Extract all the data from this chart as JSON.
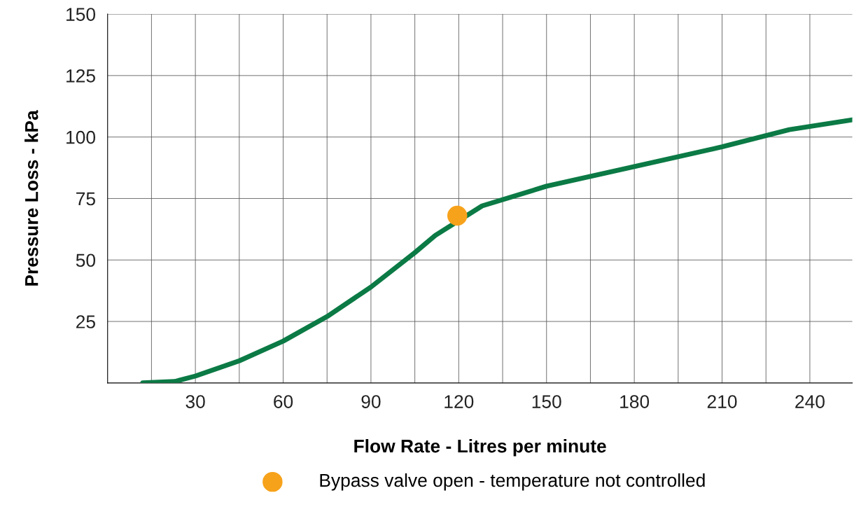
{
  "chart_data": {
    "type": "line",
    "xlabel": "Flow Rate - Litres per minute",
    "ylabel": "Pressure Loss - kPa",
    "series": [
      {
        "color": "#0b7a45",
        "x": [
          12,
          23,
          30,
          45,
          60,
          75,
          90,
          105,
          112,
          128,
          150,
          180,
          210,
          233,
          254.5
        ],
        "values": [
          0,
          0.6,
          2.8,
          9,
          17,
          27,
          39,
          53,
          60,
          72,
          80,
          88,
          96,
          103,
          107
        ]
      },
      {
        "type": "scatter",
        "name": "Bypass valve open - temperature not controlled",
        "color": "#f7a21b",
        "x": [
          119.5
        ],
        "values": [
          68
        ]
      }
    ],
    "xlim": [
      0,
      254.5
    ],
    "ylim": [
      0,
      150
    ],
    "xticks": [
      {
        "value": 15,
        "label": null
      },
      30,
      {
        "value": 45,
        "label": null
      },
      60,
      {
        "value": 75,
        "label": null
      },
      90,
      {
        "value": 105,
        "label": null
      },
      120,
      {
        "value": 135,
        "label": null
      },
      150,
      {
        "value": 165,
        "label": null
      },
      180,
      {
        "value": 195,
        "label": null
      },
      210,
      {
        "value": 225,
        "label": null
      },
      240
    ],
    "yticks": [
      25,
      50,
      75,
      100,
      125,
      150
    ],
    "grid": true,
    "legend": "bottom"
  }
}
